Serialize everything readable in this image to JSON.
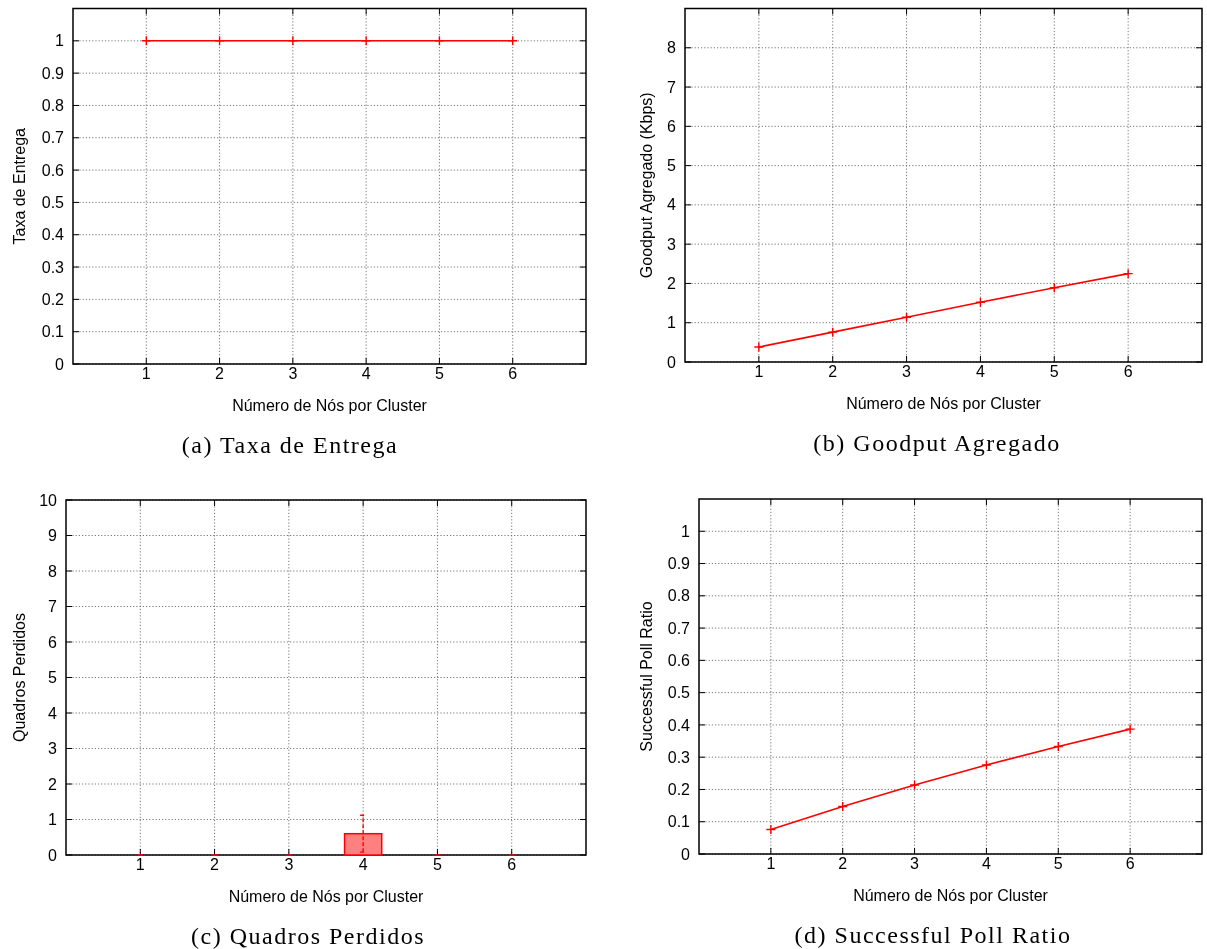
{
  "chart_data": [
    {
      "type": "line",
      "title": "(a) Taxa de Entrega",
      "xlabel": "Número de Nós por Cluster",
      "ylabel": "Taxa de Entrega",
      "x": [
        1,
        2,
        3,
        4,
        5,
        6
      ],
      "series": [
        {
          "color": "#ff0000",
          "values": [
            1,
            1,
            1,
            1,
            1,
            1
          ]
        }
      ],
      "xlim": [
        0,
        7
      ],
      "xticks": [
        1,
        2,
        3,
        4,
        5,
        6
      ],
      "ylim": [
        0,
        1.1
      ],
      "yticks": [
        0,
        0.1,
        0.2,
        0.3,
        0.4,
        0.5,
        0.6,
        0.7,
        0.8,
        0.9,
        1
      ],
      "grid": true,
      "marker": "cross",
      "line_style": "solid"
    },
    {
      "type": "line",
      "title": "(b) Goodput Agregado",
      "xlabel": "Número de Nós por Cluster",
      "ylabel": "Goodput Agregado (Kbps)",
      "x": [
        1,
        2,
        3,
        4,
        5,
        6
      ],
      "series": [
        {
          "color": "#ff0000",
          "values": [
            0.38,
            0.76,
            1.14,
            1.52,
            1.89,
            2.25
          ]
        }
      ],
      "xlim": [
        0,
        7
      ],
      "xticks": [
        1,
        2,
        3,
        4,
        5,
        6
      ],
      "ylim": [
        0,
        9
      ],
      "yticks": [
        0,
        1,
        2,
        3,
        4,
        5,
        6,
        7,
        8
      ],
      "grid": true,
      "marker": "cross",
      "line_style": "solid"
    },
    {
      "type": "bar",
      "title": "(c) Quadros Perdidos",
      "xlabel": "Número de Nós por Cluster",
      "ylabel": "Quadros Perdidos",
      "x": [
        1,
        2,
        3,
        4,
        5,
        6
      ],
      "series": [
        {
          "color": "#ff8080",
          "values": [
            0,
            0,
            0,
            0.6,
            0,
            0
          ],
          "errors": [
            0,
            0,
            0,
            0.52,
            0,
            0
          ]
        }
      ],
      "xlim": [
        0,
        7
      ],
      "xticks": [
        1,
        2,
        3,
        4,
        5,
        6
      ],
      "ylim": [
        0,
        10
      ],
      "yticks": [
        0,
        1,
        2,
        3,
        4,
        5,
        6,
        7,
        8,
        9,
        10
      ],
      "grid": true
    },
    {
      "type": "line",
      "title": "(d) Successful Poll Ratio",
      "xlabel": "Número de Nós por Cluster",
      "ylabel": "Successful Poll Ratio",
      "x": [
        1,
        2,
        3,
        4,
        5,
        6
      ],
      "series": [
        {
          "color": "#ff0000",
          "values": [
            0.076,
            0.147,
            0.214,
            0.276,
            0.333,
            0.387
          ]
        }
      ],
      "xlim": [
        0,
        7
      ],
      "xticks": [
        1,
        2,
        3,
        4,
        5,
        6
      ],
      "ylim": [
        0,
        1.1
      ],
      "yticks": [
        0,
        0.1,
        0.2,
        0.3,
        0.4,
        0.5,
        0.6,
        0.7,
        0.8,
        0.9,
        1
      ],
      "grid": true,
      "marker": "cross",
      "line_style": "solid"
    }
  ]
}
